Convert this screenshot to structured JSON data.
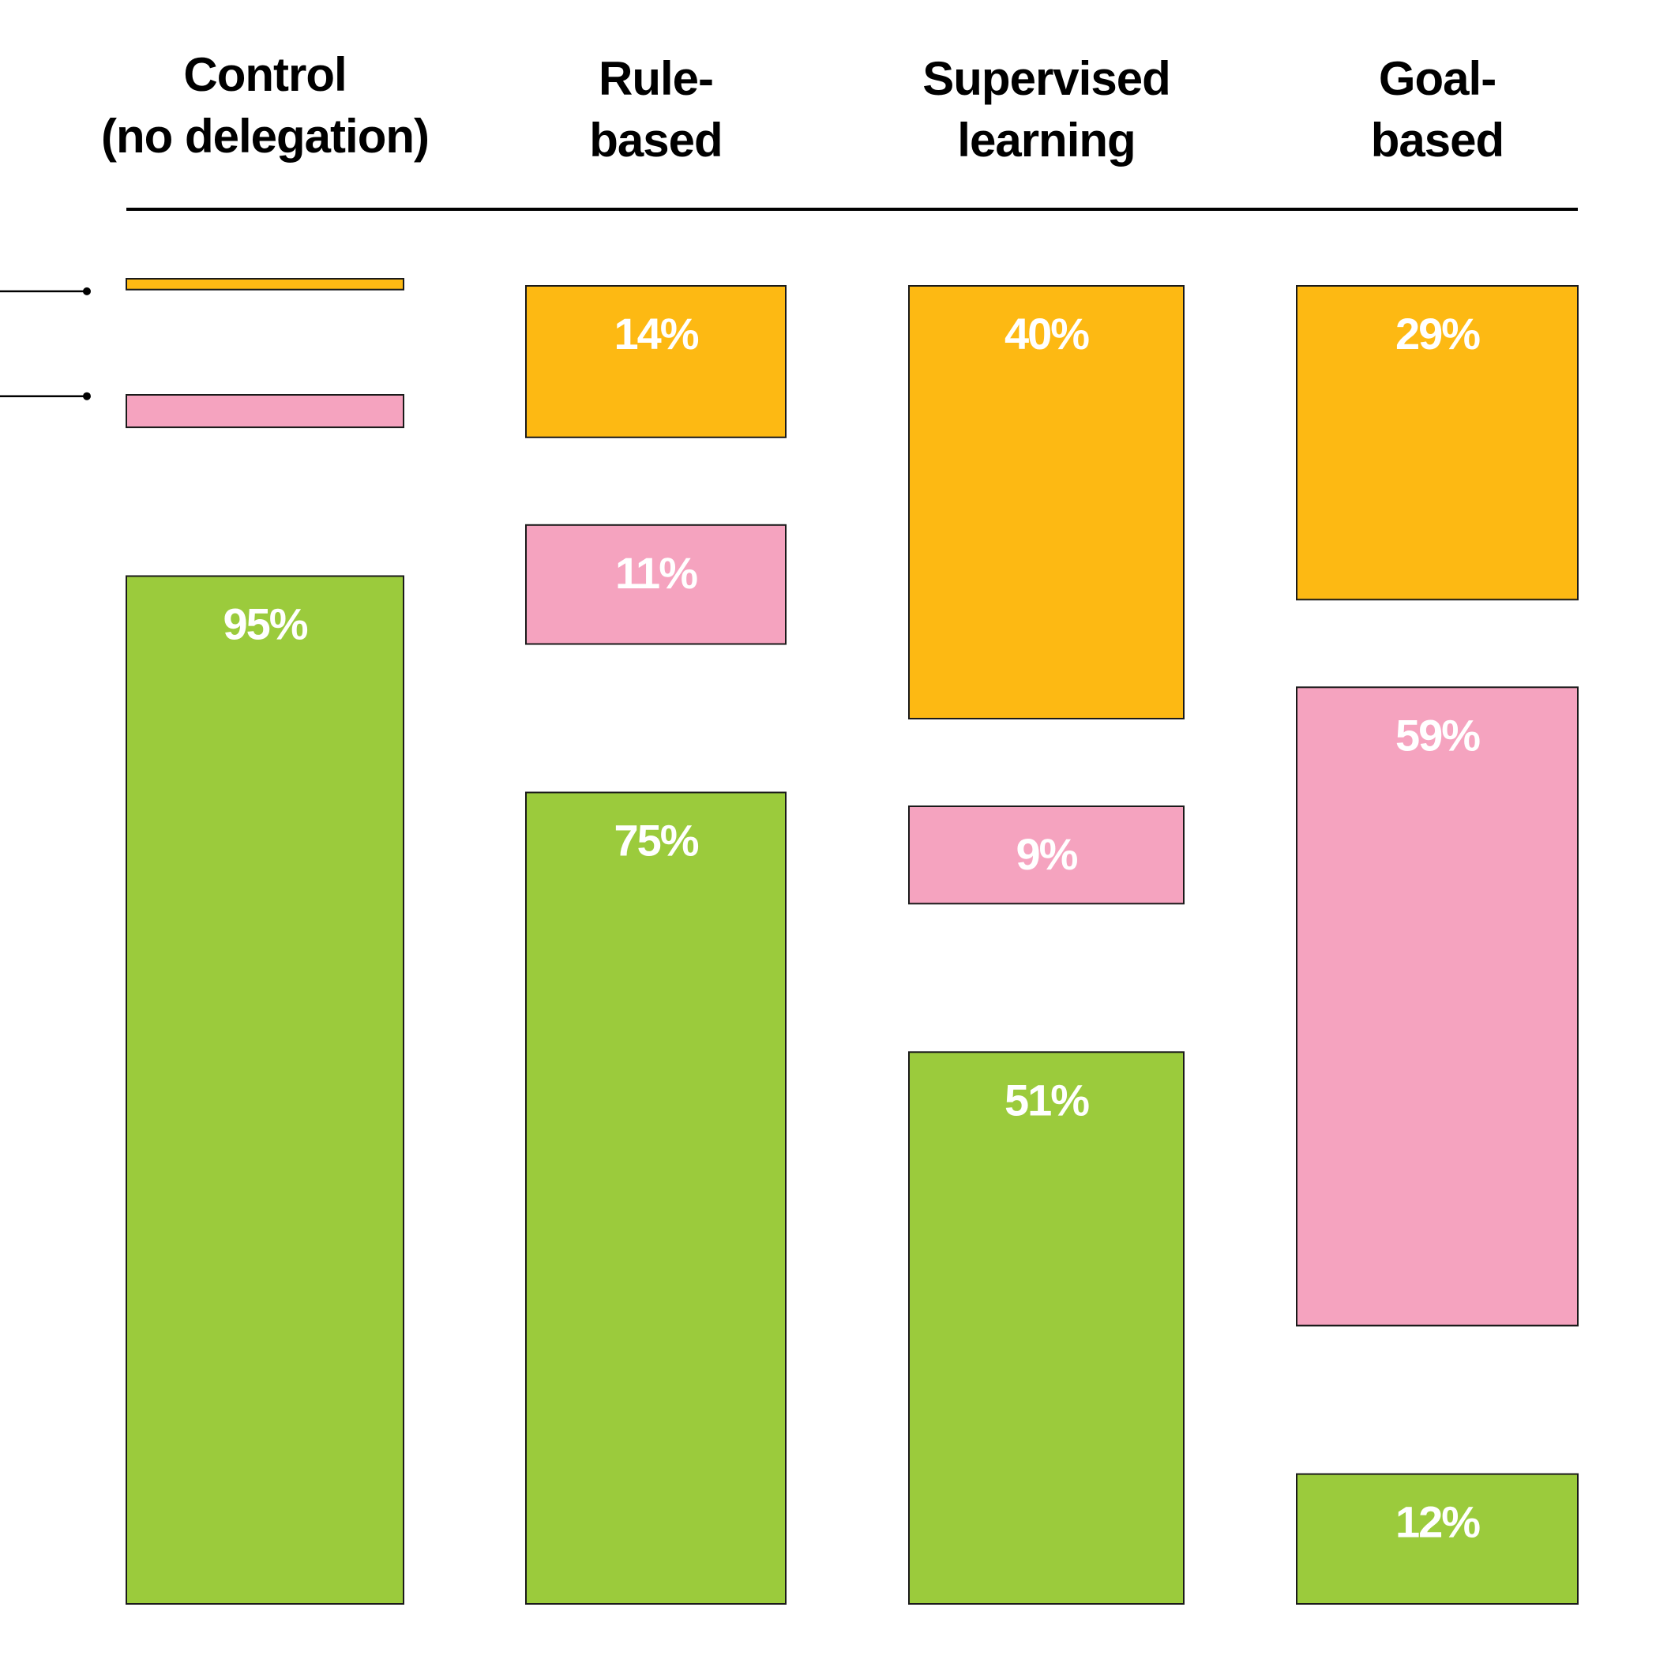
{
  "chart_data": {
    "type": "bar",
    "title": "",
    "categories": [
      [
        "Control",
        "(no delegation)"
      ],
      [
        "Rule-",
        "based"
      ],
      [
        "Supervised",
        "learning"
      ],
      [
        "Goal-",
        "based"
      ]
    ],
    "series": [
      {
        "name": "yellow",
        "color": "#FDB913",
        "values": [
          1,
          14,
          40,
          29
        ],
        "labels": [
          "",
          "14%",
          "40%",
          "29%"
        ]
      },
      {
        "name": "pink",
        "color": "#F5A3BF",
        "values": [
          3,
          11,
          9,
          59
        ],
        "labels": [
          "",
          "11%",
          "9%",
          "59%"
        ]
      },
      {
        "name": "green",
        "color": "#9BCB3C",
        "values": [
          95,
          75,
          51,
          12
        ],
        "labels": [
          "95%",
          "75%",
          "51%",
          "12%"
        ]
      }
    ],
    "ylim": [
      0,
      100
    ],
    "xlabel": "",
    "ylabel": ""
  }
}
